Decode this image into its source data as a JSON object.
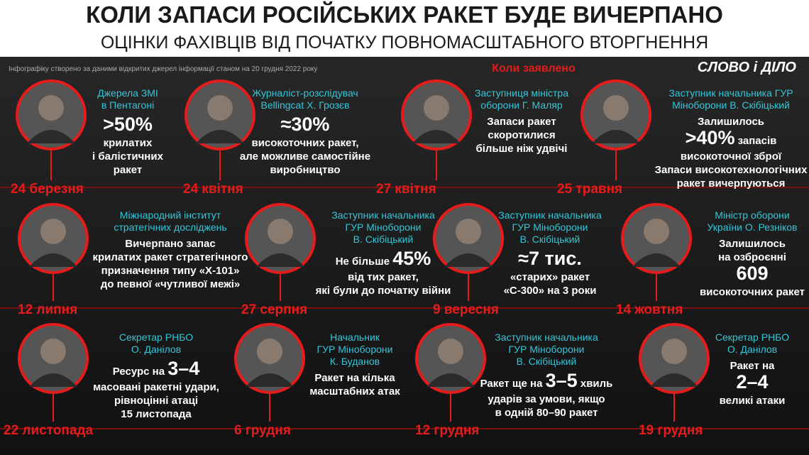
{
  "header": {
    "title": "КОЛИ ЗАПАСИ РОСІЙСЬКИХ РАКЕТ БУДЕ ВИЧЕРПАНО",
    "subtitle": "ОЦІНКИ ФАХІВЦІВ ВІД ПОЧАТКУ ПОВНОМАСШТАБНОГО ВТОРГНЕННЯ",
    "note": "Інфографіку створено за даними відкритих джерел інформації станом на 20 грудня 2022 року",
    "when_label": "Коли заявлено",
    "logo": "СЛОВО і ДІЛО"
  },
  "items": [
    {
      "source": [
        "Джерела ЗМІ",
        "в Пентагоні"
      ],
      "text": [
        [
          ">50%"
        ],
        [
          "крилатих"
        ],
        [
          "і балістичних"
        ],
        [
          "ракет"
        ]
      ],
      "date": "24 березня"
    },
    {
      "source": [
        "Журналіст-розслідувач",
        "Bellingcat Х. Грозєв"
      ],
      "text": [
        [
          "≈30%"
        ],
        [
          "високоточних ракет,"
        ],
        [
          "але можливе самостійне"
        ],
        [
          "виробництво"
        ]
      ],
      "date": "24 квітня"
    },
    {
      "source": [
        "Заступниця міністра",
        "оборони Г. Маляр"
      ],
      "text": [
        [
          "Запаси ракет"
        ],
        [
          "скоротилися"
        ],
        [
          "більше ніж удвічі"
        ]
      ],
      "date": "27 квітня"
    },
    {
      "source": [
        "Заступник начальника ГУР",
        "Міноборони В. Скібіцький"
      ],
      "text": [
        [
          "Залишилось"
        ],
        [
          ">40%",
          " запасів"
        ],
        [
          "високоточної зброї"
        ],
        [
          "Запаси високотехнологічних"
        ],
        [
          "ракет вичерпуються"
        ]
      ],
      "date": "25 травня"
    },
    {
      "source": [
        "Міжнародний інститут",
        "стратегічних досліджень"
      ],
      "text": [
        [
          "Вичерпано запас"
        ],
        [
          "крилатих ракет стратегічного"
        ],
        [
          "призначення типу «Х-101»"
        ],
        [
          "до певної «чутливої межі»"
        ]
      ],
      "date": "12 липня"
    },
    {
      "source": [
        "Заступник начальника",
        "ГУР Міноборони",
        "В. Скібіцький"
      ],
      "text": [
        [
          "Не більше ",
          "45%"
        ],
        [
          "від тих ракет,"
        ],
        [
          "які були до початку війни"
        ]
      ],
      "date": "27 серпня"
    },
    {
      "source": [
        "Заступник начальника",
        "ГУР Міноборони",
        "В. Скібіцький"
      ],
      "text": [
        [
          "≈7 тис."
        ],
        [
          "«старих» ракет"
        ],
        [
          "«С-300» на 3 роки"
        ]
      ],
      "date": "9 вересня"
    },
    {
      "source": [
        "Міністр оборони",
        "України О. Резніков"
      ],
      "text": [
        [
          "Залишилось"
        ],
        [
          "на озброєнні"
        ],
        [
          "609"
        ],
        [
          "високоточних ракет"
        ]
      ],
      "date": "14 жовтня"
    },
    {
      "source": [
        "Секретар РНБО",
        "О. Данілов"
      ],
      "text": [
        [
          "Ресурс на ",
          "3–4"
        ],
        [
          "масовані ракетні удари,"
        ],
        [
          "рівноцінні атаці"
        ],
        [
          "15 листопада"
        ]
      ],
      "date": "22 листопада"
    },
    {
      "source": [
        "Начальник",
        "ГУР Міноборони",
        "К. Буданов"
      ],
      "text": [
        [
          "Ракет на кілька"
        ],
        [
          "масштабних атак"
        ]
      ],
      "date": "6 грудня"
    },
    {
      "source": [
        "Заступник начальника",
        "ГУР Міноборони",
        "В. Скібіцький"
      ],
      "text": [
        [
          "Ракет ще на ",
          "3–5",
          " хвиль"
        ],
        [
          "ударів за умови, якщо"
        ],
        [
          "в одній 80–90 ракет"
        ]
      ],
      "date": "12 грудня"
    },
    {
      "source": [
        "Секретар РНБО",
        "О. Данілов"
      ],
      "text": [
        [
          "Ракет на"
        ],
        [
          "2–4"
        ],
        [
          "великі атаки"
        ]
      ],
      "date": "19 грудня"
    }
  ]
}
